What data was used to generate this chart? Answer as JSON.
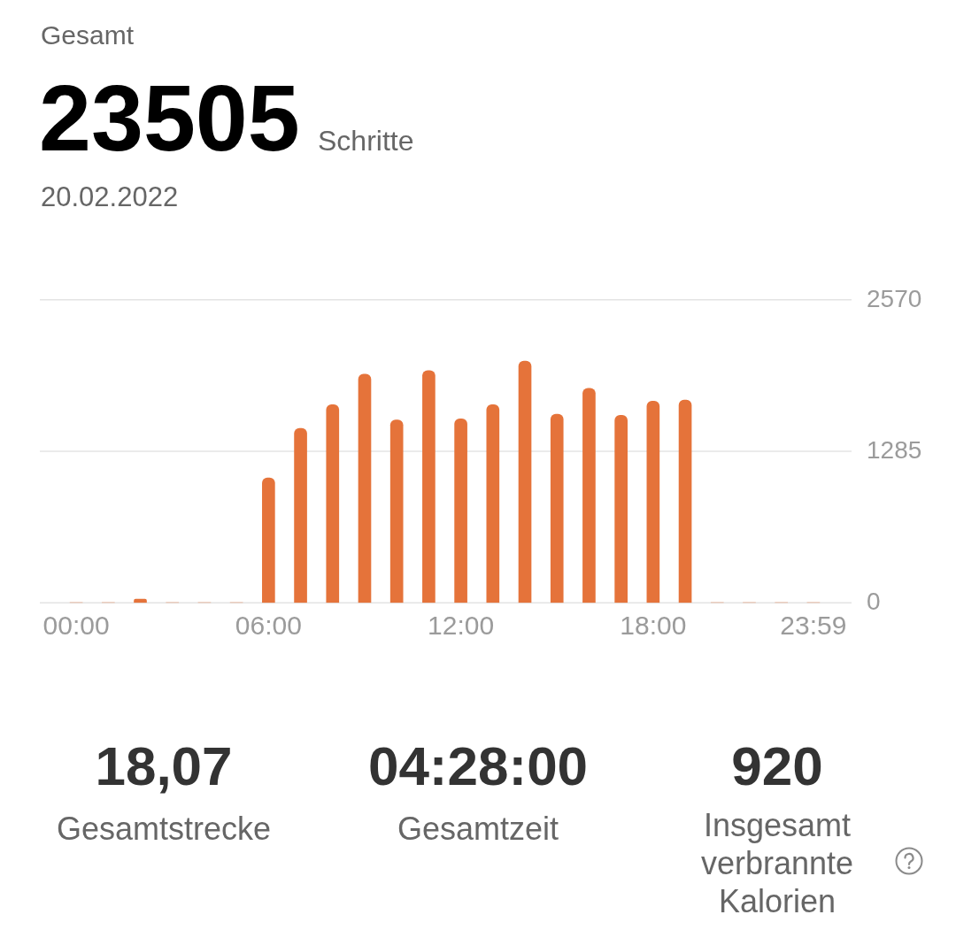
{
  "chart_data": [
    {
      "type": "bar",
      "title": "Gesamt",
      "annotations": [
        "23505",
        "Schritte",
        "20.02.2022"
      ],
      "categories": [
        "00:00",
        null,
        null,
        null,
        null,
        null,
        "06:00",
        null,
        null,
        null,
        null,
        null,
        "12:00",
        null,
        null,
        null,
        null,
        null,
        "18:00",
        null,
        null,
        null,
        null,
        "23:59"
      ],
      "values": [
        0,
        0,
        30,
        0,
        0,
        0,
        1060,
        1480,
        1680,
        1940,
        1550,
        1970,
        1560,
        1680,
        2050,
        1600,
        1820,
        1590,
        1710,
        1720,
        0,
        0,
        0,
        0
      ],
      "color": "#e5733a",
      "ylim": [
        0,
        2570
      ],
      "yticks": [
        0,
        1285,
        2570
      ],
      "grid": "y"
    },
    {
      "type": "other",
      "annotations": [
        "18,07",
        "Gesamtstrecke",
        "04:28:00",
        "Gesamtzeit",
        "920",
        "Insgesamt verbrannte Kalorien"
      ]
    }
  ]
}
